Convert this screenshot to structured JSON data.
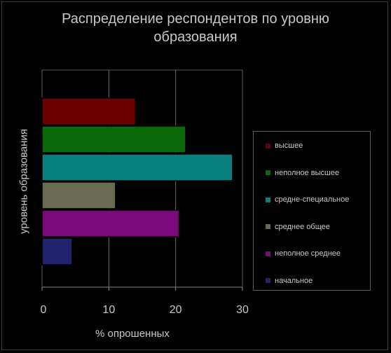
{
  "chart_data": {
    "type": "bar",
    "orientation": "horizontal",
    "title_lines": [
      "Распределение респондентов по уровню",
      "образования"
    ],
    "xlabel": "% опрошенных",
    "ylabel": "уровень образования",
    "xlim": [
      0,
      30
    ],
    "xticks": [
      0,
      10,
      20,
      30
    ],
    "grid": true,
    "legend_position": "right",
    "categories": [
      "высшее",
      "неполное высшее",
      "средне-специальное",
      "среднее общее",
      "неполное среднее",
      "начальное"
    ],
    "values": [
      14,
      21.5,
      28.5,
      11,
      20.5,
      4.5
    ],
    "colors": [
      "#6a0000",
      "#0a6a0a",
      "#0a7f7f",
      "#6a6a52",
      "#7a0a7a",
      "#22226e"
    ]
  }
}
